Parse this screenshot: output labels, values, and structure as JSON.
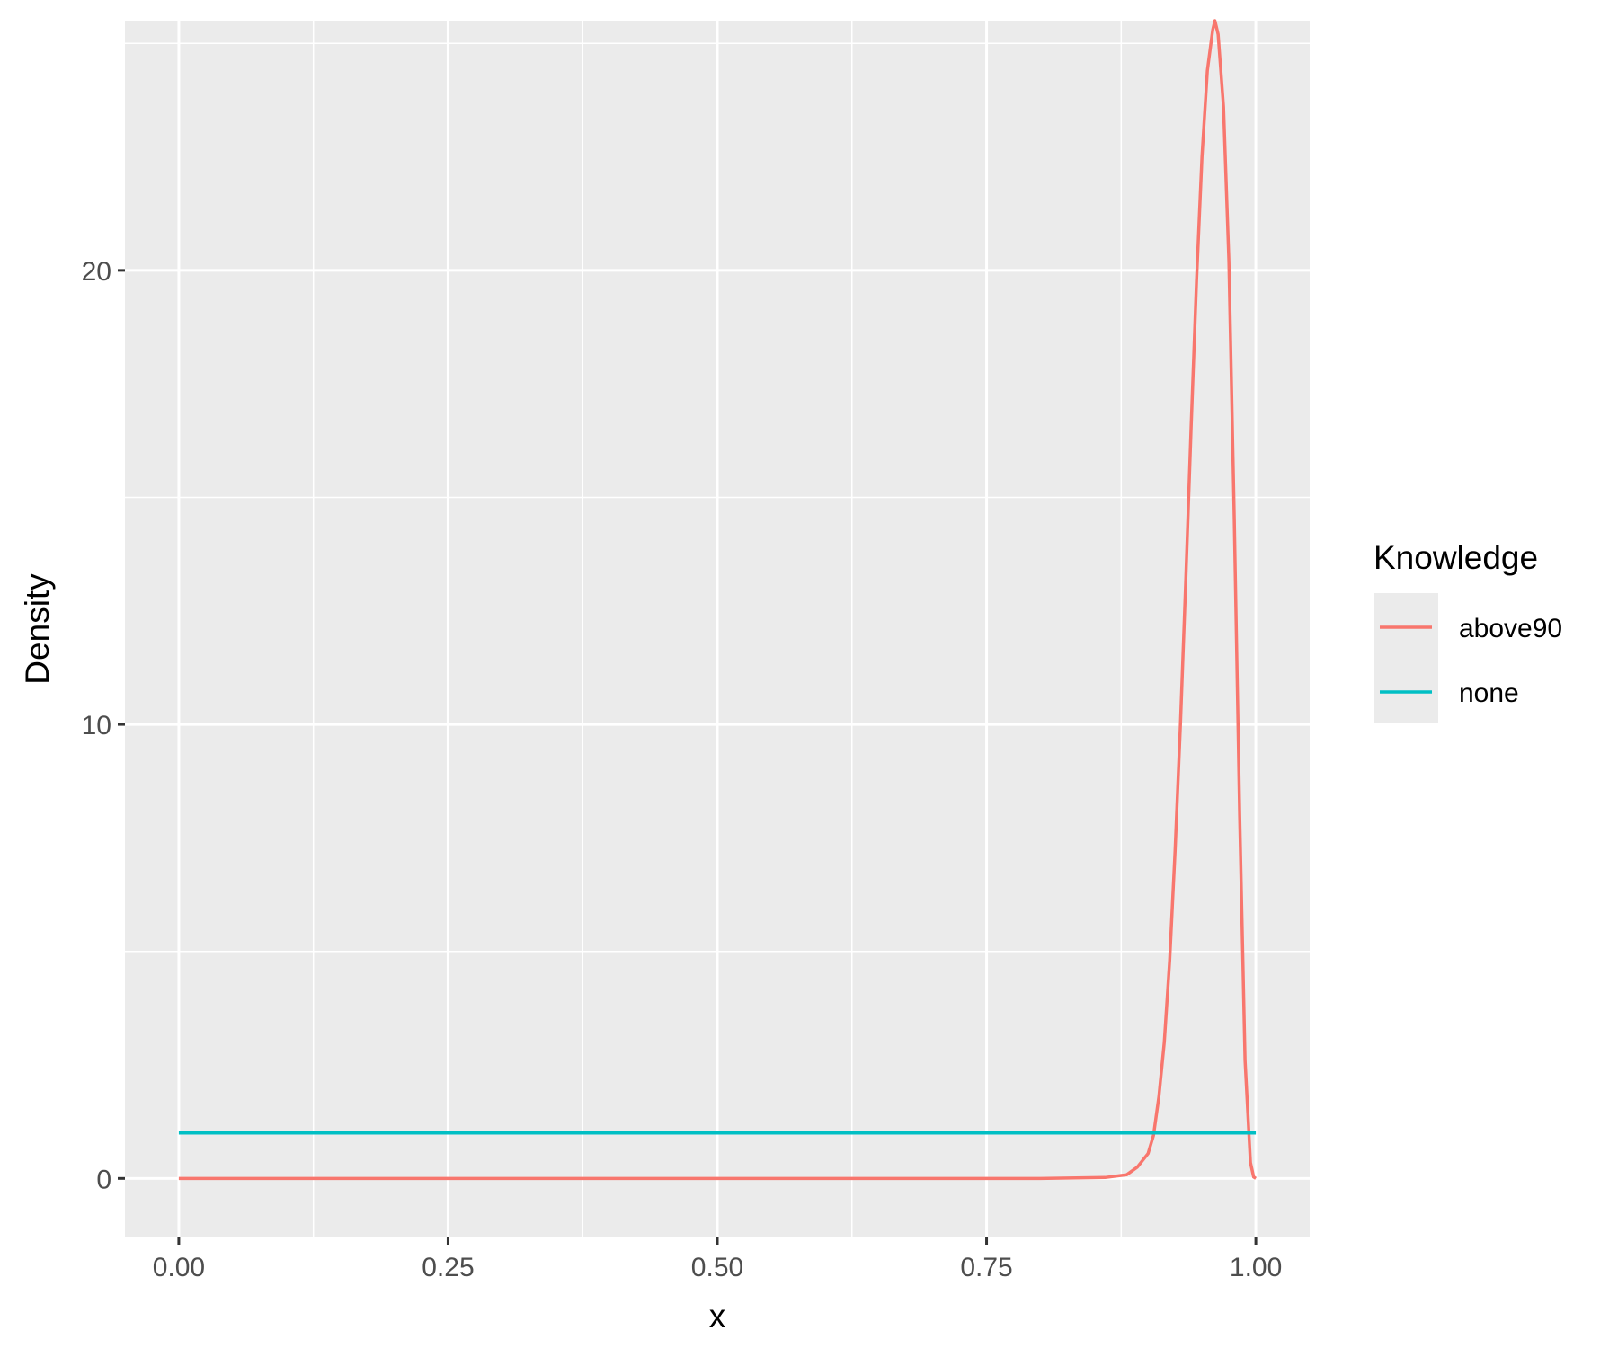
{
  "chart_data": {
    "type": "line",
    "title": "",
    "xlabel": "x",
    "ylabel": "Density",
    "xlim": [
      -0.05,
      1.05
    ],
    "ylim": [
      -1.3,
      25.5
    ],
    "x_ticks": [
      0.0,
      0.25,
      0.5,
      0.75,
      1.0
    ],
    "x_tick_labels": [
      "0.00",
      "0.25",
      "0.50",
      "0.75",
      "1.00"
    ],
    "y_ticks": [
      0,
      10,
      20
    ],
    "y_tick_labels": [
      "0",
      "10",
      "20"
    ],
    "grid": true,
    "legend": {
      "title": "Knowledge",
      "position": "right"
    },
    "series": [
      {
        "name": "above90",
        "color": "#F8766D",
        "x": [
          0.0,
          0.8,
          0.86,
          0.88,
          0.89,
          0.9,
          0.905,
          0.91,
          0.915,
          0.92,
          0.925,
          0.93,
          0.935,
          0.94,
          0.945,
          0.95,
          0.955,
          0.96,
          0.962,
          0.965,
          0.97,
          0.975,
          0.98,
          0.985,
          0.99,
          0.995,
          0.998,
          1.0
        ],
        "y": [
          0,
          0,
          0.02,
          0.08,
          0.25,
          0.55,
          0.95,
          1.8,
          3.0,
          4.8,
          7.2,
          10.0,
          13.2,
          16.6,
          19.8,
          22.5,
          24.4,
          25.3,
          25.5,
          25.2,
          23.6,
          20.2,
          14.5,
          8.0,
          2.6,
          0.35,
          0.03,
          0
        ]
      },
      {
        "name": "none",
        "color": "#00BFC4",
        "x": [
          0.0,
          1.0
        ],
        "y": [
          1,
          1
        ]
      }
    ]
  }
}
